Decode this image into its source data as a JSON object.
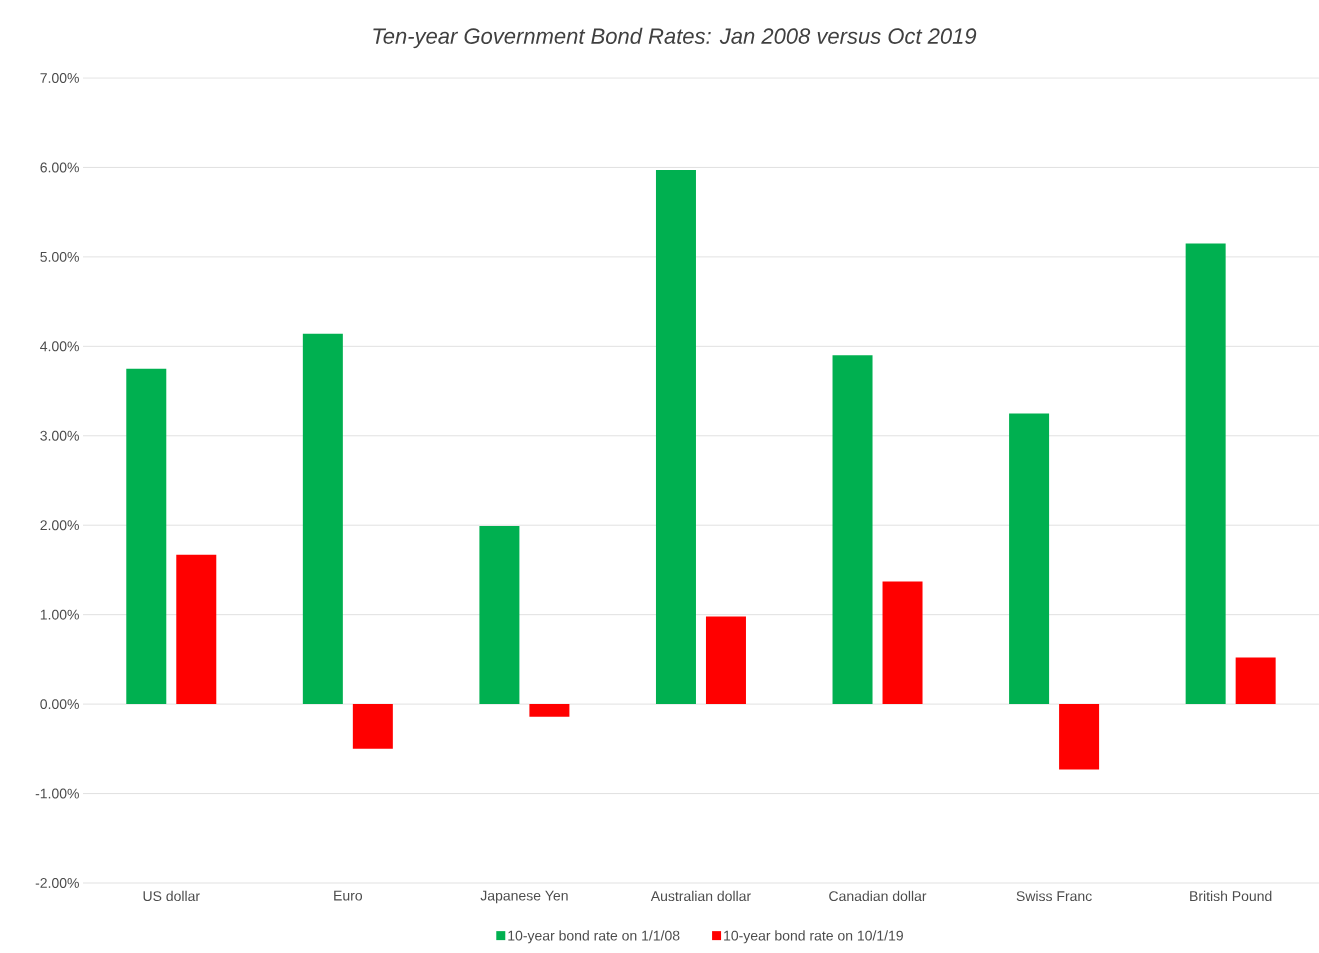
{
  "chart_data": {
    "type": "bar",
    "title": "Ten-year Government Bond Rates: Jan 2008 versus Oct 2019",
    "categories": [
      "US dollar",
      "Euro",
      "Japanese Yen",
      "Australian dollar",
      "Canadian dollar",
      "Swiss Franc",
      "British Pound"
    ],
    "series": [
      {
        "name": "10-year bond rate on 1/1/08",
        "color": "#00b050",
        "values": [
          3.75,
          4.14,
          1.99,
          5.97,
          3.9,
          3.25,
          5.15
        ]
      },
      {
        "name": "10-year bond rate on 10/1/19",
        "color": "#ff0000",
        "values": [
          1.67,
          -0.5,
          -0.14,
          0.98,
          1.37,
          -0.73,
          0.52
        ]
      }
    ],
    "ylim": [
      -2,
      7
    ],
    "yticks": [
      {
        "value": -2,
        "label": "-2.00%"
      },
      {
        "value": -1,
        "label": "-1.00%"
      },
      {
        "value": 0,
        "label": "0.00%"
      },
      {
        "value": 1,
        "label": "1.00%"
      },
      {
        "value": 2,
        "label": "2.00%"
      },
      {
        "value": 3,
        "label": "3.00%"
      },
      {
        "value": 4,
        "label": "4.00%"
      },
      {
        "value": 5,
        "label": "5.00%"
      },
      {
        "value": 6,
        "label": "6.00%"
      },
      {
        "value": 7,
        "label": "7.00%"
      }
    ],
    "grid": "y",
    "legend": "bottom"
  }
}
